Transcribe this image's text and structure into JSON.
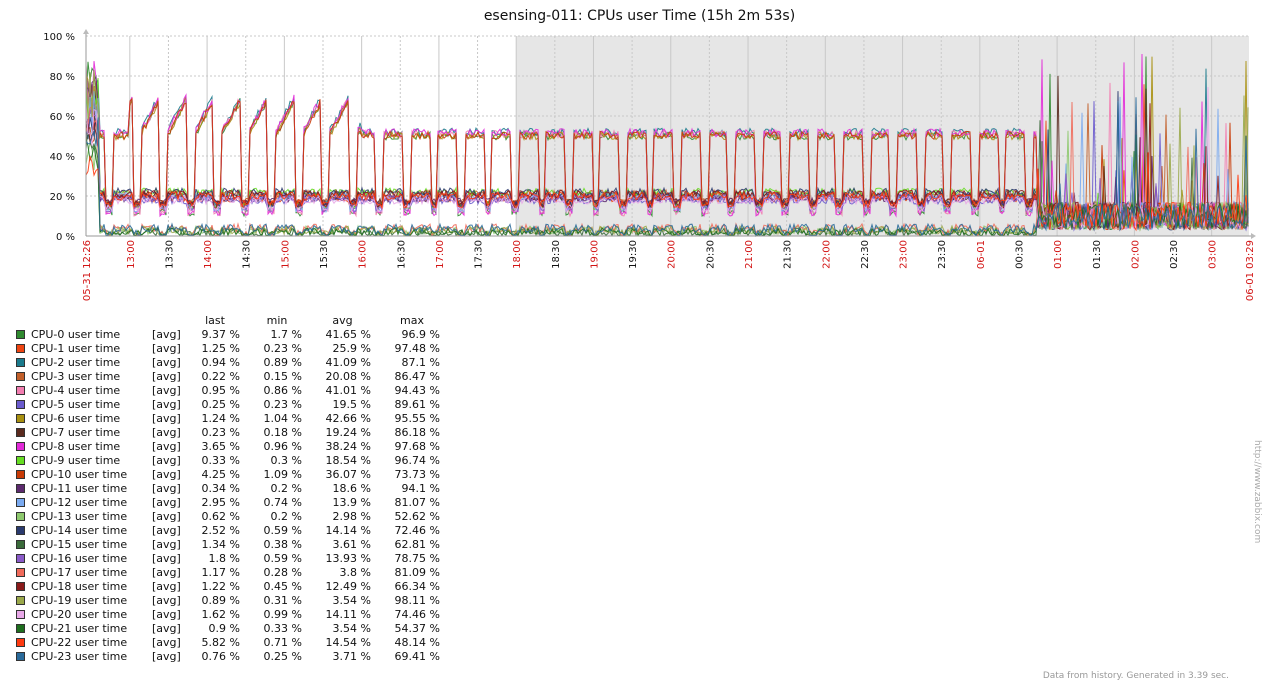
{
  "chart_data": {
    "type": "line",
    "title": "esensing-011: CPUs user Time (15h 2m 53s)",
    "ylim": [
      0,
      100
    ],
    "y_ticks": [
      "0 %",
      "20 %",
      "40 %",
      "60 %",
      "80 %",
      "100 %"
    ],
    "y_tick_values": [
      0,
      20,
      40,
      60,
      80,
      100
    ],
    "x_start_label": "05-31 12:26",
    "x_end_label": "06-01 03:29",
    "x_tick_labels": [
      "13:00",
      "13:30",
      "14:00",
      "14:30",
      "15:00",
      "15:30",
      "16:00",
      "16:30",
      "17:00",
      "17:30",
      "18:00",
      "18:30",
      "19:00",
      "19:30",
      "20:00",
      "20:30",
      "21:00",
      "21:30",
      "22:00",
      "22:30",
      "23:00",
      "23:30",
      "06-01",
      "00:30",
      "01:00",
      "01:30",
      "02:00",
      "02:30",
      "03:00"
    ],
    "x_tick_hours": [
      13.0,
      13.5,
      14.0,
      14.5,
      15.0,
      15.5,
      16.0,
      16.5,
      17.0,
      17.5,
      18.0,
      18.5,
      19.0,
      19.5,
      20.0,
      20.5,
      21.0,
      21.5,
      22.0,
      22.5,
      23.0,
      23.5,
      24.0,
      24.5,
      25.0,
      25.5,
      26.0,
      26.5,
      27.0
    ],
    "x_range_hours": [
      12.433,
      27.483
    ],
    "shaded_from_hour": 18.0,
    "shaded_color": "#e6e6e6",
    "grid": true,
    "legend": "bottom",
    "legend_headers": [
      "last",
      "min",
      "avg",
      "max"
    ],
    "series": [
      {
        "name": "CPU-0 user time",
        "fn": "[avg]",
        "color": "#2f8a2f",
        "last": "9.37 %",
        "min": "1.7 %",
        "avg": "41.65 %",
        "max": "96.9 %",
        "avg_value": 41.65,
        "max_value": 96.9
      },
      {
        "name": "CPU-1 user time",
        "fn": "[avg]",
        "color": "#ee4411",
        "last": "1.25 %",
        "min": "0.23 %",
        "avg": "25.9 %",
        "max": "97.48 %",
        "avg_value": 25.9,
        "max_value": 97.48
      },
      {
        "name": "CPU-2 user time",
        "fn": "[avg]",
        "color": "#1a7a8c",
        "last": "0.94 %",
        "min": "0.89 %",
        "avg": "41.09 %",
        "max": "87.1 %",
        "avg_value": 41.09,
        "max_value": 87.1
      },
      {
        "name": "CPU-3 user time",
        "fn": "[avg]",
        "color": "#c25f2a",
        "last": "0.22 %",
        "min": "0.15 %",
        "avg": "20.08 %",
        "max": "86.47 %",
        "avg_value": 20.08,
        "max_value": 86.47
      },
      {
        "name": "CPU-4 user time",
        "fn": "[avg]",
        "color": "#f27db0",
        "last": "0.95 %",
        "min": "0.86 %",
        "avg": "41.01 %",
        "max": "94.43 %",
        "avg_value": 41.01,
        "max_value": 94.43
      },
      {
        "name": "CPU-5 user time",
        "fn": "[avg]",
        "color": "#6a5acd",
        "last": "0.25 %",
        "min": "0.23 %",
        "avg": "19.5 %",
        "max": "89.61 %",
        "avg_value": 19.5,
        "max_value": 89.61
      },
      {
        "name": "CPU-6 user time",
        "fn": "[avg]",
        "color": "#a89010",
        "last": "1.24 %",
        "min": "1.04 %",
        "avg": "42.66 %",
        "max": "95.55 %",
        "avg_value": 42.66,
        "max_value": 95.55
      },
      {
        "name": "CPU-7 user time",
        "fn": "[avg]",
        "color": "#5a2a1e",
        "last": "0.23 %",
        "min": "0.18 %",
        "avg": "19.24 %",
        "max": "86.18 %",
        "avg_value": 19.24,
        "max_value": 86.18
      },
      {
        "name": "CPU-8 user time",
        "fn": "[avg]",
        "color": "#e22ad8",
        "last": "3.65 %",
        "min": "0.96 %",
        "avg": "38.24 %",
        "max": "97.68 %",
        "avg_value": 38.24,
        "max_value": 97.68
      },
      {
        "name": "CPU-9 user time",
        "fn": "[avg]",
        "color": "#66dd22",
        "last": "0.33 %",
        "min": "0.3 %",
        "avg": "18.54 %",
        "max": "96.74 %",
        "avg_value": 18.54,
        "max_value": 96.74
      },
      {
        "name": "CPU-10 user time",
        "fn": "[avg]",
        "color": "#c83a06",
        "last": "4.25 %",
        "min": "1.09 %",
        "avg": "36.07 %",
        "max": "73.73 %",
        "avg_value": 36.07,
        "max_value": 73.73
      },
      {
        "name": "CPU-11 user time",
        "fn": "[avg]",
        "color": "#5c2a6e",
        "last": "0.34 %",
        "min": "0.2 %",
        "avg": "18.6 %",
        "max": "94.1 %",
        "avg_value": 18.6,
        "max_value": 94.1
      },
      {
        "name": "CPU-12 user time",
        "fn": "[avg]",
        "color": "#7aaaf0",
        "last": "2.95 %",
        "min": "0.74 %",
        "avg": "13.9 %",
        "max": "81.07 %",
        "avg_value": 13.9,
        "max_value": 81.07
      },
      {
        "name": "CPU-13 user time",
        "fn": "[avg]",
        "color": "#8ec96e",
        "last": "0.62 %",
        "min": "0.2 %",
        "avg": "2.98 %",
        "max": "52.62 %",
        "avg_value": 2.98,
        "max_value": 52.62
      },
      {
        "name": "CPU-14 user time",
        "fn": "[avg]",
        "color": "#2a3a6e",
        "last": "2.52 %",
        "min": "0.59 %",
        "avg": "14.14 %",
        "max": "72.46 %",
        "avg_value": 14.14,
        "max_value": 72.46
      },
      {
        "name": "CPU-15 user time",
        "fn": "[avg]",
        "color": "#3a6a3a",
        "last": "1.34 %",
        "min": "0.38 %",
        "avg": "3.61 %",
        "max": "62.81 %",
        "avg_value": 3.61,
        "max_value": 62.81
      },
      {
        "name": "CPU-16 user time",
        "fn": "[avg]",
        "color": "#8a5ac8",
        "last": "1.8 %",
        "min": "0.59 %",
        "avg": "13.93 %",
        "max": "78.75 %",
        "avg_value": 13.93,
        "max_value": 78.75
      },
      {
        "name": "CPU-17 user time",
        "fn": "[avg]",
        "color": "#f06a5a",
        "last": "1.17 %",
        "min": "0.28 %",
        "avg": "3.8 %",
        "max": "81.09 %",
        "avg_value": 3.8,
        "max_value": 81.09
      },
      {
        "name": "CPU-18 user time",
        "fn": "[avg]",
        "color": "#8a1a1a",
        "last": "1.22 %",
        "min": "0.45 %",
        "avg": "12.49 %",
        "max": "66.34 %",
        "avg_value": 12.49,
        "max_value": 66.34
      },
      {
        "name": "CPU-19 user time",
        "fn": "[avg]",
        "color": "#9aa84a",
        "last": "0.89 %",
        "min": "0.31 %",
        "avg": "3.54 %",
        "max": "98.11 %",
        "avg_value": 3.54,
        "max_value": 98.11
      },
      {
        "name": "CPU-20 user time",
        "fn": "[avg]",
        "color": "#e8a8e8",
        "last": "1.62 %",
        "min": "0.99 %",
        "avg": "14.11 %",
        "max": "74.46 %",
        "avg_value": 14.11,
        "max_value": 74.46
      },
      {
        "name": "CPU-21 user time",
        "fn": "[avg]",
        "color": "#1e6e1e",
        "last": "0.9 %",
        "min": "0.33 %",
        "avg": "3.54 %",
        "max": "54.37 %",
        "avg_value": 3.54,
        "max_value": 54.37
      },
      {
        "name": "CPU-22 user time",
        "fn": "[avg]",
        "color": "#ff3a10",
        "last": "5.82 %",
        "min": "0.71 %",
        "avg": "14.54 %",
        "max": "48.14 %",
        "avg_value": 14.54,
        "max_value": 48.14
      },
      {
        "name": "CPU-23 user time",
        "fn": "[avg]",
        "color": "#2a6a9a",
        "last": "0.76 %",
        "min": "0.25 %",
        "avg": "3.71 %",
        "max": "69.41 %",
        "avg_value": 3.71,
        "max_value": 69.41
      }
    ]
  },
  "side_url": "http://www.zabbix.com",
  "footer": "Data from history. Generated in 3.39 sec."
}
